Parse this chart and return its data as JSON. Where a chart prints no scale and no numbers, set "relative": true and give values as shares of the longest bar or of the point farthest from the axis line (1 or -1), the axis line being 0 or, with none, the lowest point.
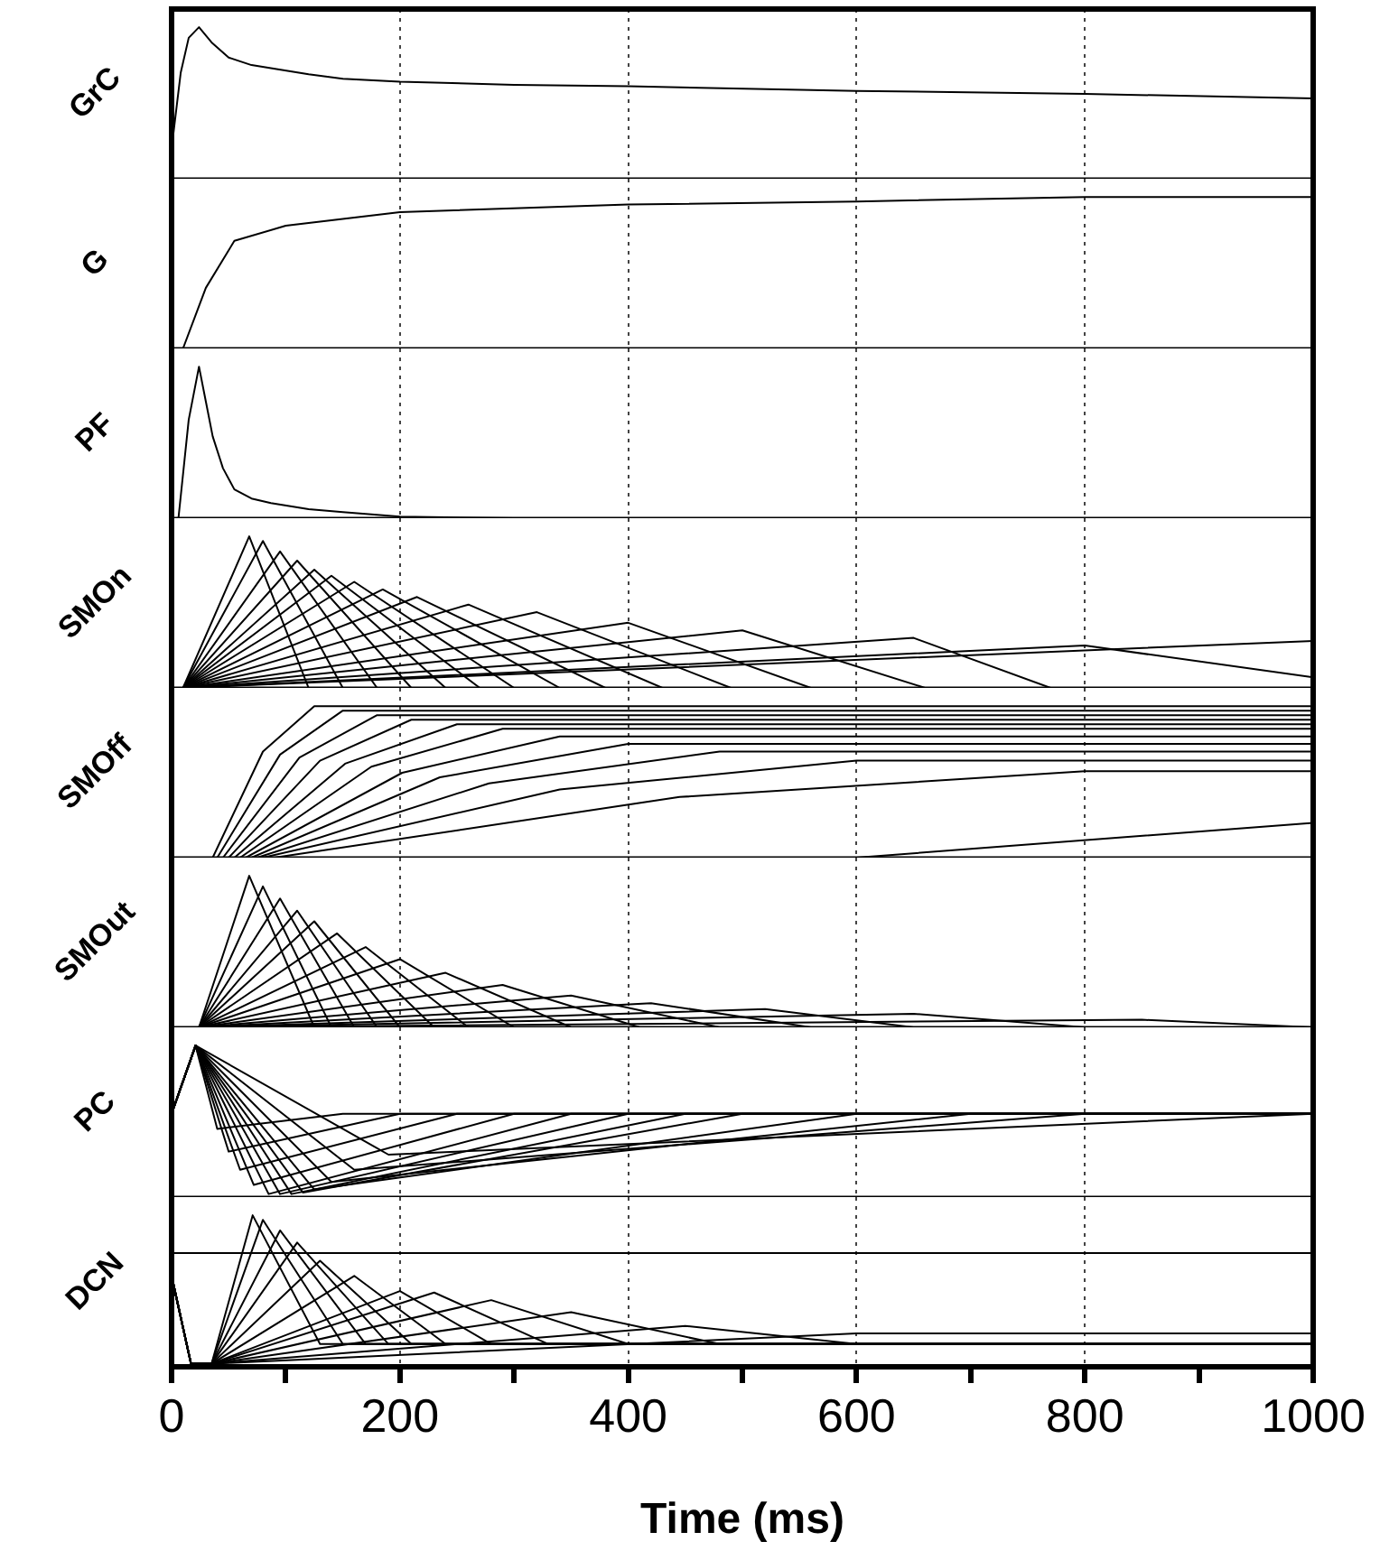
{
  "chart_data": [
    {
      "type": "line",
      "relative": true,
      "ylabel": "GrC",
      "xlim": [
        0,
        1000
      ],
      "xticks": [
        0,
        200,
        400,
        600,
        800,
        1000
      ],
      "grid": "x",
      "tick_labels": false,
      "series": [
        {
          "color": "#000000",
          "x": [
            0,
            8,
            15,
            24,
            35,
            50,
            70,
            87,
            120,
            150,
            200,
            300,
            400,
            600,
            800,
            1000
          ],
          "values": [
            0.2,
            0.7,
            0.93,
            1,
            0.9,
            0.8,
            0.75,
            0.73,
            0.69,
            0.66,
            0.64,
            0.62,
            0.61,
            0.58,
            0.56,
            0.53
          ]
        }
      ]
    },
    {
      "type": "line",
      "relative": true,
      "ylabel": "G",
      "xlim": [
        0,
        1000
      ],
      "xticks": [
        0,
        200,
        400,
        600,
        800,
        1000
      ],
      "grid": "x",
      "tick_labels": false,
      "series": [
        {
          "color": "#000000",
          "x": [
            0,
            10,
            30,
            55,
            100,
            200,
            400,
            600,
            800,
            1000
          ],
          "values": [
            0,
            0,
            0.4,
            0.71,
            0.81,
            0.9,
            0.95,
            0.97,
            1,
            1
          ]
        }
      ]
    },
    {
      "type": "line",
      "relative": true,
      "ylabel": "PF",
      "xlim": [
        0,
        1000
      ],
      "xticks": [
        0,
        200,
        400,
        600,
        800,
        1000
      ],
      "grid": "x",
      "tick_labels": false,
      "series": [
        {
          "color": "#000000",
          "x": [
            0,
            6,
            15,
            24,
            30,
            36,
            45,
            55,
            70,
            87,
            120,
            150,
            200,
            300,
            1000
          ],
          "values": [
            0,
            0,
            0.65,
            1,
            0.77,
            0.54,
            0.33,
            0.19,
            0.13,
            0.1,
            0.06,
            0.04,
            0.01,
            0,
            0
          ]
        }
      ]
    },
    {
      "type": "line",
      "relative": true,
      "ylabel": "SMOn",
      "xlim": [
        0,
        1000
      ],
      "xticks": [
        0,
        200,
        400,
        600,
        800,
        1000
      ],
      "grid": "x",
      "tick_labels": false,
      "series": [
        {
          "color": "#000000",
          "x": [
            0,
            10,
            68,
            120
          ],
          "values": [
            0,
            0,
            1,
            0
          ]
        },
        {
          "color": "#000000",
          "x": [
            0,
            10,
            80,
            150
          ],
          "values": [
            0,
            0,
            0.97,
            0
          ]
        },
        {
          "color": "#000000",
          "x": [
            0,
            10,
            95,
            180
          ],
          "values": [
            0,
            0,
            0.9,
            0
          ]
        },
        {
          "color": "#000000",
          "x": [
            0,
            10,
            110,
            210
          ],
          "values": [
            0,
            0,
            0.84,
            0
          ]
        },
        {
          "color": "#000000",
          "x": [
            0,
            10,
            125,
            240
          ],
          "values": [
            0,
            0,
            0.78,
            0
          ]
        },
        {
          "color": "#000000",
          "x": [
            0,
            10,
            140,
            270
          ],
          "values": [
            0,
            0,
            0.74,
            0
          ]
        },
        {
          "color": "#000000",
          "x": [
            0,
            10,
            160,
            300
          ],
          "values": [
            0,
            0,
            0.7,
            0
          ]
        },
        {
          "color": "#000000",
          "x": [
            0,
            10,
            185,
            340
          ],
          "values": [
            0,
            0,
            0.65,
            0
          ]
        },
        {
          "color": "#000000",
          "x": [
            0,
            10,
            215,
            380
          ],
          "values": [
            0,
            0,
            0.6,
            0
          ]
        },
        {
          "color": "#000000",
          "x": [
            0,
            10,
            260,
            430
          ],
          "values": [
            0,
            0,
            0.55,
            0
          ]
        },
        {
          "color": "#000000",
          "x": [
            0,
            10,
            320,
            490
          ],
          "values": [
            0,
            0,
            0.5,
            0
          ]
        },
        {
          "color": "#000000",
          "x": [
            0,
            10,
            400,
            560
          ],
          "values": [
            0,
            0,
            0.43,
            0
          ]
        },
        {
          "color": "#000000",
          "x": [
            0,
            10,
            500,
            660
          ],
          "values": [
            0,
            0,
            0.38,
            0
          ]
        },
        {
          "color": "#000000",
          "x": [
            0,
            10,
            650,
            770
          ],
          "values": [
            0,
            0,
            0.33,
            0
          ]
        },
        {
          "color": "#000000",
          "x": [
            0,
            10,
            800,
            1000
          ],
          "values": [
            0,
            0,
            0.28,
            0.07
          ]
        },
        {
          "color": "#000000",
          "x": [
            0,
            10,
            1000
          ],
          "values": [
            0,
            0,
            0.31
          ]
        }
      ]
    },
    {
      "type": "line",
      "relative": true,
      "ylabel": "SMOff",
      "xlim": [
        0,
        1000
      ],
      "xticks": [
        0,
        200,
        400,
        600,
        800,
        1000
      ],
      "grid": "x",
      "tick_labels": false,
      "series": [
        {
          "color": "#000000",
          "x": [
            0,
            36,
            80,
            125,
            1000
          ],
          "values": [
            0,
            0,
            0.7,
            1,
            1
          ]
        },
        {
          "color": "#000000",
          "x": [
            0,
            40,
            95,
            150,
            1000
          ],
          "values": [
            0,
            0,
            0.68,
            0.97,
            0.97
          ]
        },
        {
          "color": "#000000",
          "x": [
            0,
            45,
            112,
            180,
            1000
          ],
          "values": [
            0,
            0,
            0.66,
            0.94,
            0.94
          ]
        },
        {
          "color": "#000000",
          "x": [
            0,
            50,
            130,
            210,
            1000
          ],
          "values": [
            0,
            0,
            0.64,
            0.91,
            0.91
          ]
        },
        {
          "color": "#000000",
          "x": [
            0,
            55,
            152,
            250,
            1000
          ],
          "values": [
            0,
            0,
            0.62,
            0.88,
            0.88
          ]
        },
        {
          "color": "#000000",
          "x": [
            0,
            60,
            175,
            290,
            1000
          ],
          "values": [
            0,
            0,
            0.6,
            0.85,
            0.85
          ]
        },
        {
          "color": "#000000",
          "x": [
            0,
            65,
            202,
            340,
            1000
          ],
          "values": [
            0,
            0,
            0.56,
            0.8,
            0.8
          ]
        },
        {
          "color": "#000000",
          "x": [
            0,
            70,
            235,
            400,
            1000
          ],
          "values": [
            0,
            0,
            0.53,
            0.75,
            0.75
          ]
        },
        {
          "color": "#000000",
          "x": [
            0,
            75,
            278,
            480,
            1000
          ],
          "values": [
            0,
            0,
            0.49,
            0.7,
            0.7
          ]
        },
        {
          "color": "#000000",
          "x": [
            0,
            80,
            340,
            600,
            1000
          ],
          "values": [
            0,
            0,
            0.45,
            0.64,
            0.64
          ]
        },
        {
          "color": "#000000",
          "x": [
            0,
            90,
            445,
            800,
            1000
          ],
          "values": [
            0,
            0,
            0.4,
            0.57,
            0.57
          ]
        },
        {
          "color": "#000000",
          "x": [
            0,
            600,
            1000
          ],
          "values": [
            0,
            0,
            0.23
          ]
        }
      ]
    },
    {
      "type": "line",
      "relative": true,
      "ylabel": "SMOut",
      "xlim": [
        0,
        1000
      ],
      "xticks": [
        0,
        200,
        400,
        600,
        800,
        1000
      ],
      "grid": "x",
      "tick_labels": false,
      "series": [
        {
          "color": "#000000",
          "x": [
            0,
            24,
            68,
            125
          ],
          "values": [
            0,
            0,
            1,
            0
          ]
        },
        {
          "color": "#000000",
          "x": [
            0,
            24,
            80,
            140
          ],
          "values": [
            0,
            0,
            0.93,
            0
          ]
        },
        {
          "color": "#000000",
          "x": [
            0,
            24,
            95,
            160
          ],
          "values": [
            0,
            0,
            0.85,
            0
          ]
        },
        {
          "color": "#000000",
          "x": [
            0,
            24,
            110,
            180
          ],
          "values": [
            0,
            0,
            0.77,
            0
          ]
        },
        {
          "color": "#000000",
          "x": [
            0,
            24,
            125,
            200
          ],
          "values": [
            0,
            0,
            0.7,
            0
          ]
        },
        {
          "color": "#000000",
          "x": [
            0,
            24,
            145,
            230
          ],
          "values": [
            0,
            0,
            0.62,
            0
          ]
        },
        {
          "color": "#000000",
          "x": [
            0,
            24,
            170,
            260
          ],
          "values": [
            0,
            0,
            0.53,
            0
          ]
        },
        {
          "color": "#000000",
          "x": [
            0,
            24,
            200,
            300
          ],
          "values": [
            0,
            0,
            0.45,
            0
          ]
        },
        {
          "color": "#000000",
          "x": [
            0,
            24,
            240,
            350
          ],
          "values": [
            0,
            0,
            0.36,
            0
          ]
        },
        {
          "color": "#000000",
          "x": [
            0,
            24,
            290,
            410
          ],
          "values": [
            0,
            0,
            0.28,
            0
          ]
        },
        {
          "color": "#000000",
          "x": [
            0,
            24,
            350,
            480
          ],
          "values": [
            0,
            0,
            0.21,
            0
          ]
        },
        {
          "color": "#000000",
          "x": [
            0,
            24,
            420,
            560
          ],
          "values": [
            0,
            0,
            0.16,
            0
          ]
        },
        {
          "color": "#000000",
          "x": [
            0,
            24,
            520,
            650
          ],
          "values": [
            0,
            0,
            0.12,
            0
          ]
        },
        {
          "color": "#000000",
          "x": [
            0,
            24,
            650,
            800
          ],
          "values": [
            0,
            0,
            0.09,
            0
          ]
        },
        {
          "color": "#000000",
          "x": [
            0,
            24,
            850,
            1000
          ],
          "values": [
            0,
            0,
            0.05,
            0
          ]
        }
      ]
    },
    {
      "type": "line",
      "relative": true,
      "ylabel": "PC",
      "xlim": [
        0,
        1000
      ],
      "xticks": [
        0,
        200,
        400,
        600,
        800,
        1000
      ],
      "grid": "x",
      "tick_labels": false,
      "series": [
        {
          "color": "#000000",
          "x": [
            0,
            21,
            40,
            150,
            1000
          ],
          "values": [
            0.55,
            1,
            0.45,
            0.55,
            0.55
          ]
        },
        {
          "color": "#000000",
          "x": [
            0,
            21,
            50,
            200,
            1000
          ],
          "values": [
            0.55,
            1,
            0.3,
            0.55,
            0.55
          ]
        },
        {
          "color": "#000000",
          "x": [
            0,
            21,
            60,
            250,
            1000
          ],
          "values": [
            0.55,
            1,
            0.18,
            0.55,
            0.55
          ]
        },
        {
          "color": "#000000",
          "x": [
            0,
            21,
            72,
            300,
            1000
          ],
          "values": [
            0.55,
            1,
            0.08,
            0.55,
            0.55
          ]
        },
        {
          "color": "#000000",
          "x": [
            0,
            21,
            85,
            350,
            1000
          ],
          "values": [
            0.55,
            1,
            0.02,
            0.55,
            0.55
          ]
        },
        {
          "color": "#000000",
          "x": [
            0,
            21,
            95,
            400,
            1000
          ],
          "values": [
            0.55,
            1,
            0.02,
            0.55,
            0.55
          ]
        },
        {
          "color": "#000000",
          "x": [
            0,
            21,
            105,
            450,
            1000
          ],
          "values": [
            0.55,
            1,
            0.02,
            0.55,
            0.55
          ]
        },
        {
          "color": "#000000",
          "x": [
            0,
            21,
            115,
            500,
            1000
          ],
          "values": [
            0.55,
            1,
            0.03,
            0.55,
            0.55
          ]
        },
        {
          "color": "#000000",
          "x": [
            0,
            21,
            125,
            600,
            1000
          ],
          "values": [
            0.55,
            1,
            0.05,
            0.55,
            0.55
          ]
        },
        {
          "color": "#000000",
          "x": [
            0,
            21,
            140,
            700,
            1000
          ],
          "values": [
            0.55,
            1,
            0.1,
            0.55,
            0.55
          ]
        },
        {
          "color": "#000000",
          "x": [
            0,
            21,
            160,
            800,
            1000
          ],
          "values": [
            0.55,
            1,
            0.18,
            0.55,
            0.55
          ]
        },
        {
          "color": "#000000",
          "x": [
            0,
            21,
            190,
            1000
          ],
          "values": [
            0.55,
            1,
            0.28,
            0.55
          ]
        }
      ]
    },
    {
      "type": "line",
      "relative": true,
      "ylabel": "DCN",
      "xlabel": "Time (ms)",
      "xlim": [
        0,
        1000
      ],
      "xticks": [
        0,
        {
          "value": 100,
          "label": null
        },
        200,
        {
          "value": 300,
          "label": null
        },
        400,
        {
          "value": 500,
          "label": null
        },
        600,
        {
          "value": 700,
          "label": null
        },
        800,
        {
          "value": 900,
          "label": null
        },
        1000
      ],
      "grid": "x",
      "tick_labels": "x",
      "ref_lines": [
        {
          "axis": "y",
          "value": 0.75
        }
      ],
      "series": [
        {
          "color": "#000000",
          "x": [
            0,
            17,
            35,
            71,
            130,
            1000
          ],
          "values": [
            0.6,
            0.02,
            0.02,
            1,
            0.15,
            0.15
          ]
        },
        {
          "color": "#000000",
          "x": [
            0,
            17,
            35,
            80,
            150,
            1000
          ],
          "values": [
            0.6,
            0.02,
            0.02,
            0.97,
            0.15,
            0.15
          ]
        },
        {
          "color": "#000000",
          "x": [
            0,
            17,
            35,
            95,
            170,
            1000
          ],
          "values": [
            0.6,
            0.02,
            0.02,
            0.9,
            0.15,
            0.15
          ]
        },
        {
          "color": "#000000",
          "x": [
            0,
            17,
            35,
            110,
            190,
            1000
          ],
          "values": [
            0.6,
            0.02,
            0.02,
            0.82,
            0.15,
            0.15
          ]
        },
        {
          "color": "#000000",
          "x": [
            0,
            17,
            35,
            130,
            210,
            1000
          ],
          "values": [
            0.6,
            0.02,
            0.02,
            0.7,
            0.15,
            0.15
          ]
        },
        {
          "color": "#000000",
          "x": [
            0,
            17,
            35,
            160,
            240,
            1000
          ],
          "values": [
            0.6,
            0.02,
            0.02,
            0.6,
            0.15,
            0.15
          ]
        },
        {
          "color": "#000000",
          "x": [
            0,
            17,
            35,
            200,
            280,
            1000
          ],
          "values": [
            0.6,
            0.02,
            0.02,
            0.5,
            0.15,
            0.15
          ]
        },
        {
          "color": "#000000",
          "x": [
            0,
            17,
            35,
            230,
            330,
            1000
          ],
          "values": [
            0.6,
            0.02,
            0.02,
            0.49,
            0.15,
            0.15
          ]
        },
        {
          "color": "#000000",
          "x": [
            0,
            17,
            35,
            280,
            400,
            1000
          ],
          "values": [
            0.6,
            0.02,
            0.02,
            0.44,
            0.15,
            0.15
          ]
        },
        {
          "color": "#000000",
          "x": [
            0,
            17,
            35,
            350,
            480,
            1000
          ],
          "values": [
            0.6,
            0.02,
            0.02,
            0.36,
            0.15,
            0.15
          ]
        },
        {
          "color": "#000000",
          "x": [
            0,
            17,
            35,
            450,
            600,
            1000
          ],
          "values": [
            0.6,
            0.02,
            0.02,
            0.27,
            0.15,
            0.15
          ]
        },
        {
          "color": "#000000",
          "x": [
            0,
            17,
            35,
            600,
            1000
          ],
          "values": [
            0.6,
            0.02,
            0.02,
            0.22,
            0.22
          ]
        }
      ]
    }
  ]
}
